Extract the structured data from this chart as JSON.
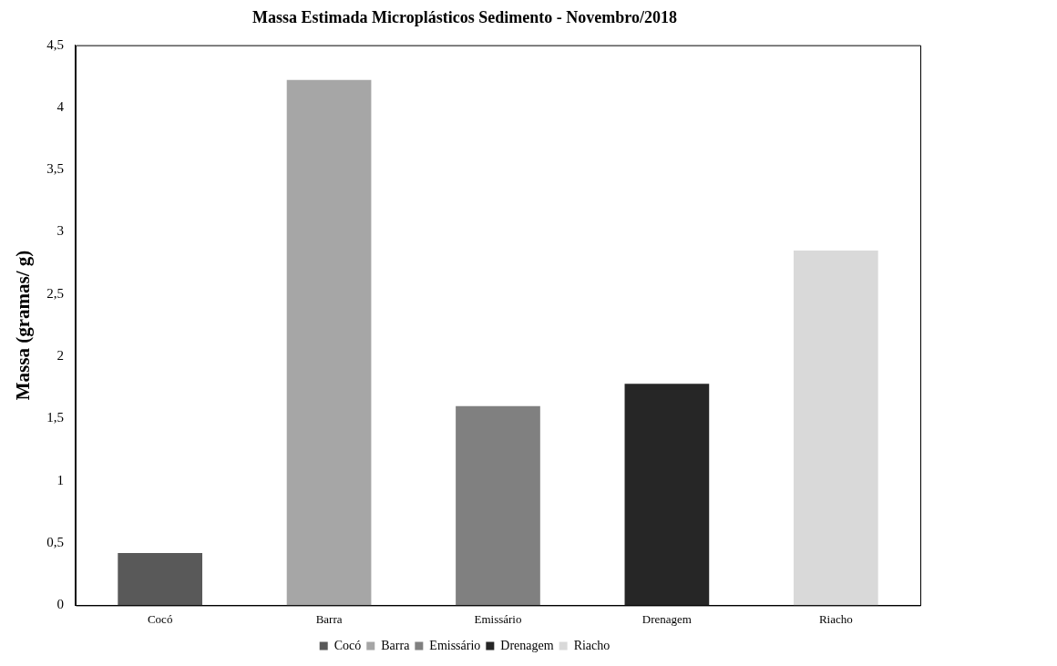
{
  "chart_data": {
    "type": "bar",
    "title": "Massa Estimada Microplásticos Sedimento - Novembro/2018",
    "ylabel": "Massa (gramas/ g)",
    "categories": [
      "Cocó",
      "Barra",
      "Emissário",
      "Drenagem",
      "Riacho"
    ],
    "series": [
      {
        "name": "Cocó",
        "color": "#595959",
        "values": [
          0.42,
          null,
          null,
          null,
          null
        ]
      },
      {
        "name": "Barra",
        "color": "#a6a6a6",
        "values": [
          null,
          4.22,
          null,
          null,
          null
        ]
      },
      {
        "name": "Emissário",
        "color": "#808080",
        "values": [
          null,
          null,
          1.6,
          null,
          null
        ]
      },
      {
        "name": "Drenagem",
        "color": "#262626",
        "values": [
          null,
          null,
          null,
          1.78,
          null
        ]
      },
      {
        "name": "Riacho",
        "color": "#d9d9d9",
        "values": [
          null,
          null,
          null,
          null,
          2.85
        ]
      }
    ],
    "ylim": [
      0,
      4.5
    ],
    "yticks": [
      {
        "value": 0,
        "label": "0"
      },
      {
        "value": 0.5,
        "label": "0,5"
      },
      {
        "value": 1,
        "label": "1"
      },
      {
        "value": 1.5,
        "label": "1,5"
      },
      {
        "value": 2,
        "label": "2"
      },
      {
        "value": 2.5,
        "label": "2,5"
      },
      {
        "value": 3,
        "label": "3"
      },
      {
        "value": 3.5,
        "label": "3,5"
      },
      {
        "value": 4,
        "label": "4"
      },
      {
        "value": 4.5,
        "label": "4,5"
      }
    ],
    "grid": false,
    "legend": "bottom"
  }
}
